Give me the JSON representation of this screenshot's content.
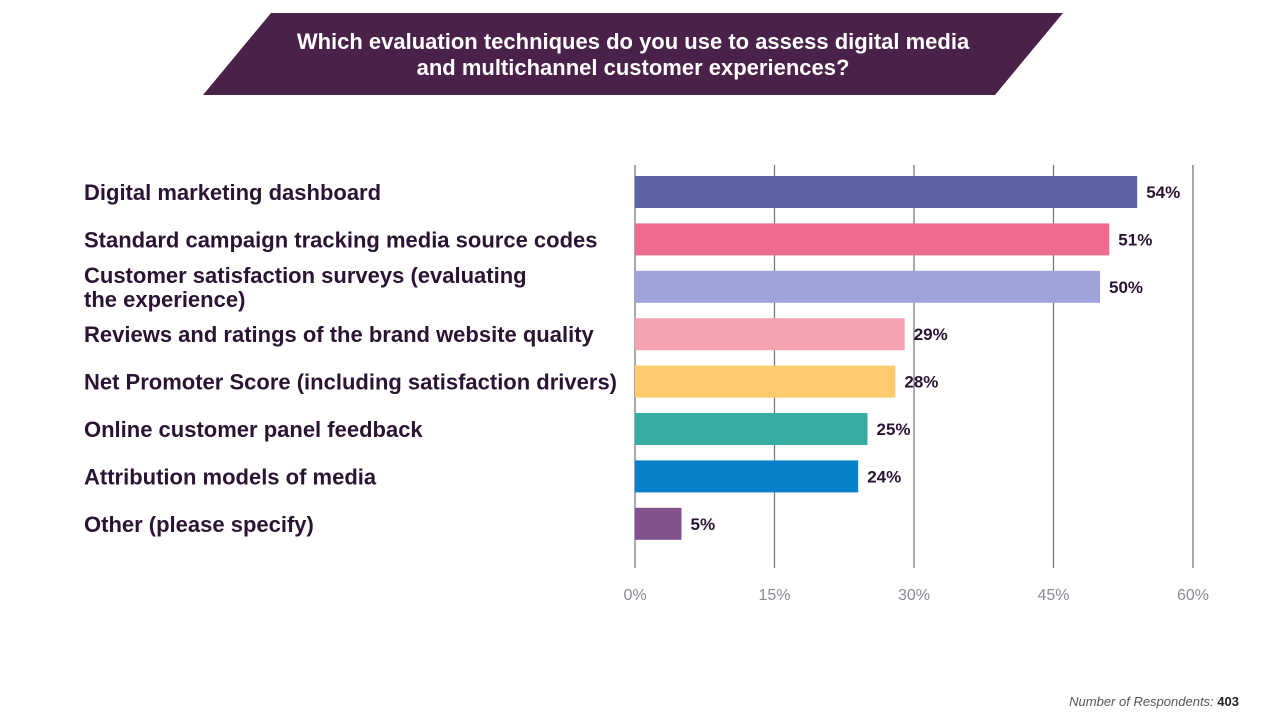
{
  "chart_data": {
    "type": "bar",
    "orientation": "horizontal",
    "title_lines": [
      "Which evaluation techniques do you use to assess digital media",
      "and multichannel customer experiences?"
    ],
    "categories": [
      [
        "Digital marketing dashboard"
      ],
      [
        "Standard campaign tracking media source codes"
      ],
      [
        "Customer satisfaction surveys (evaluating",
        "the experience)"
      ],
      [
        "Reviews and ratings of the brand website quality"
      ],
      [
        "Net Promoter Score (including satisfaction drivers)"
      ],
      [
        "Online customer panel feedback"
      ],
      [
        "Attribution models of media"
      ],
      [
        "Other (please specify)"
      ]
    ],
    "values": [
      54,
      51,
      50,
      29,
      28,
      25,
      24,
      5
    ],
    "value_labels": [
      "54%",
      "51%",
      "50%",
      "29%",
      "28%",
      "25%",
      "24%",
      "5%"
    ],
    "colors": [
      "#5c64a3",
      "#ee6b8f",
      "#9ea3d9",
      "#f7a2b0",
      "#fdcb6b",
      "#35ada1",
      "#0880cc",
      "#82528e"
    ],
    "xlim": [
      0,
      60
    ],
    "xticks": [
      0,
      15,
      30,
      45,
      60
    ],
    "xtick_labels": [
      "0%",
      "15%",
      "30%",
      "45%",
      "60%"
    ],
    "grid": "vertical",
    "legend": "none"
  },
  "footer": {
    "label": "Number of Respondents:",
    "value": "403"
  }
}
